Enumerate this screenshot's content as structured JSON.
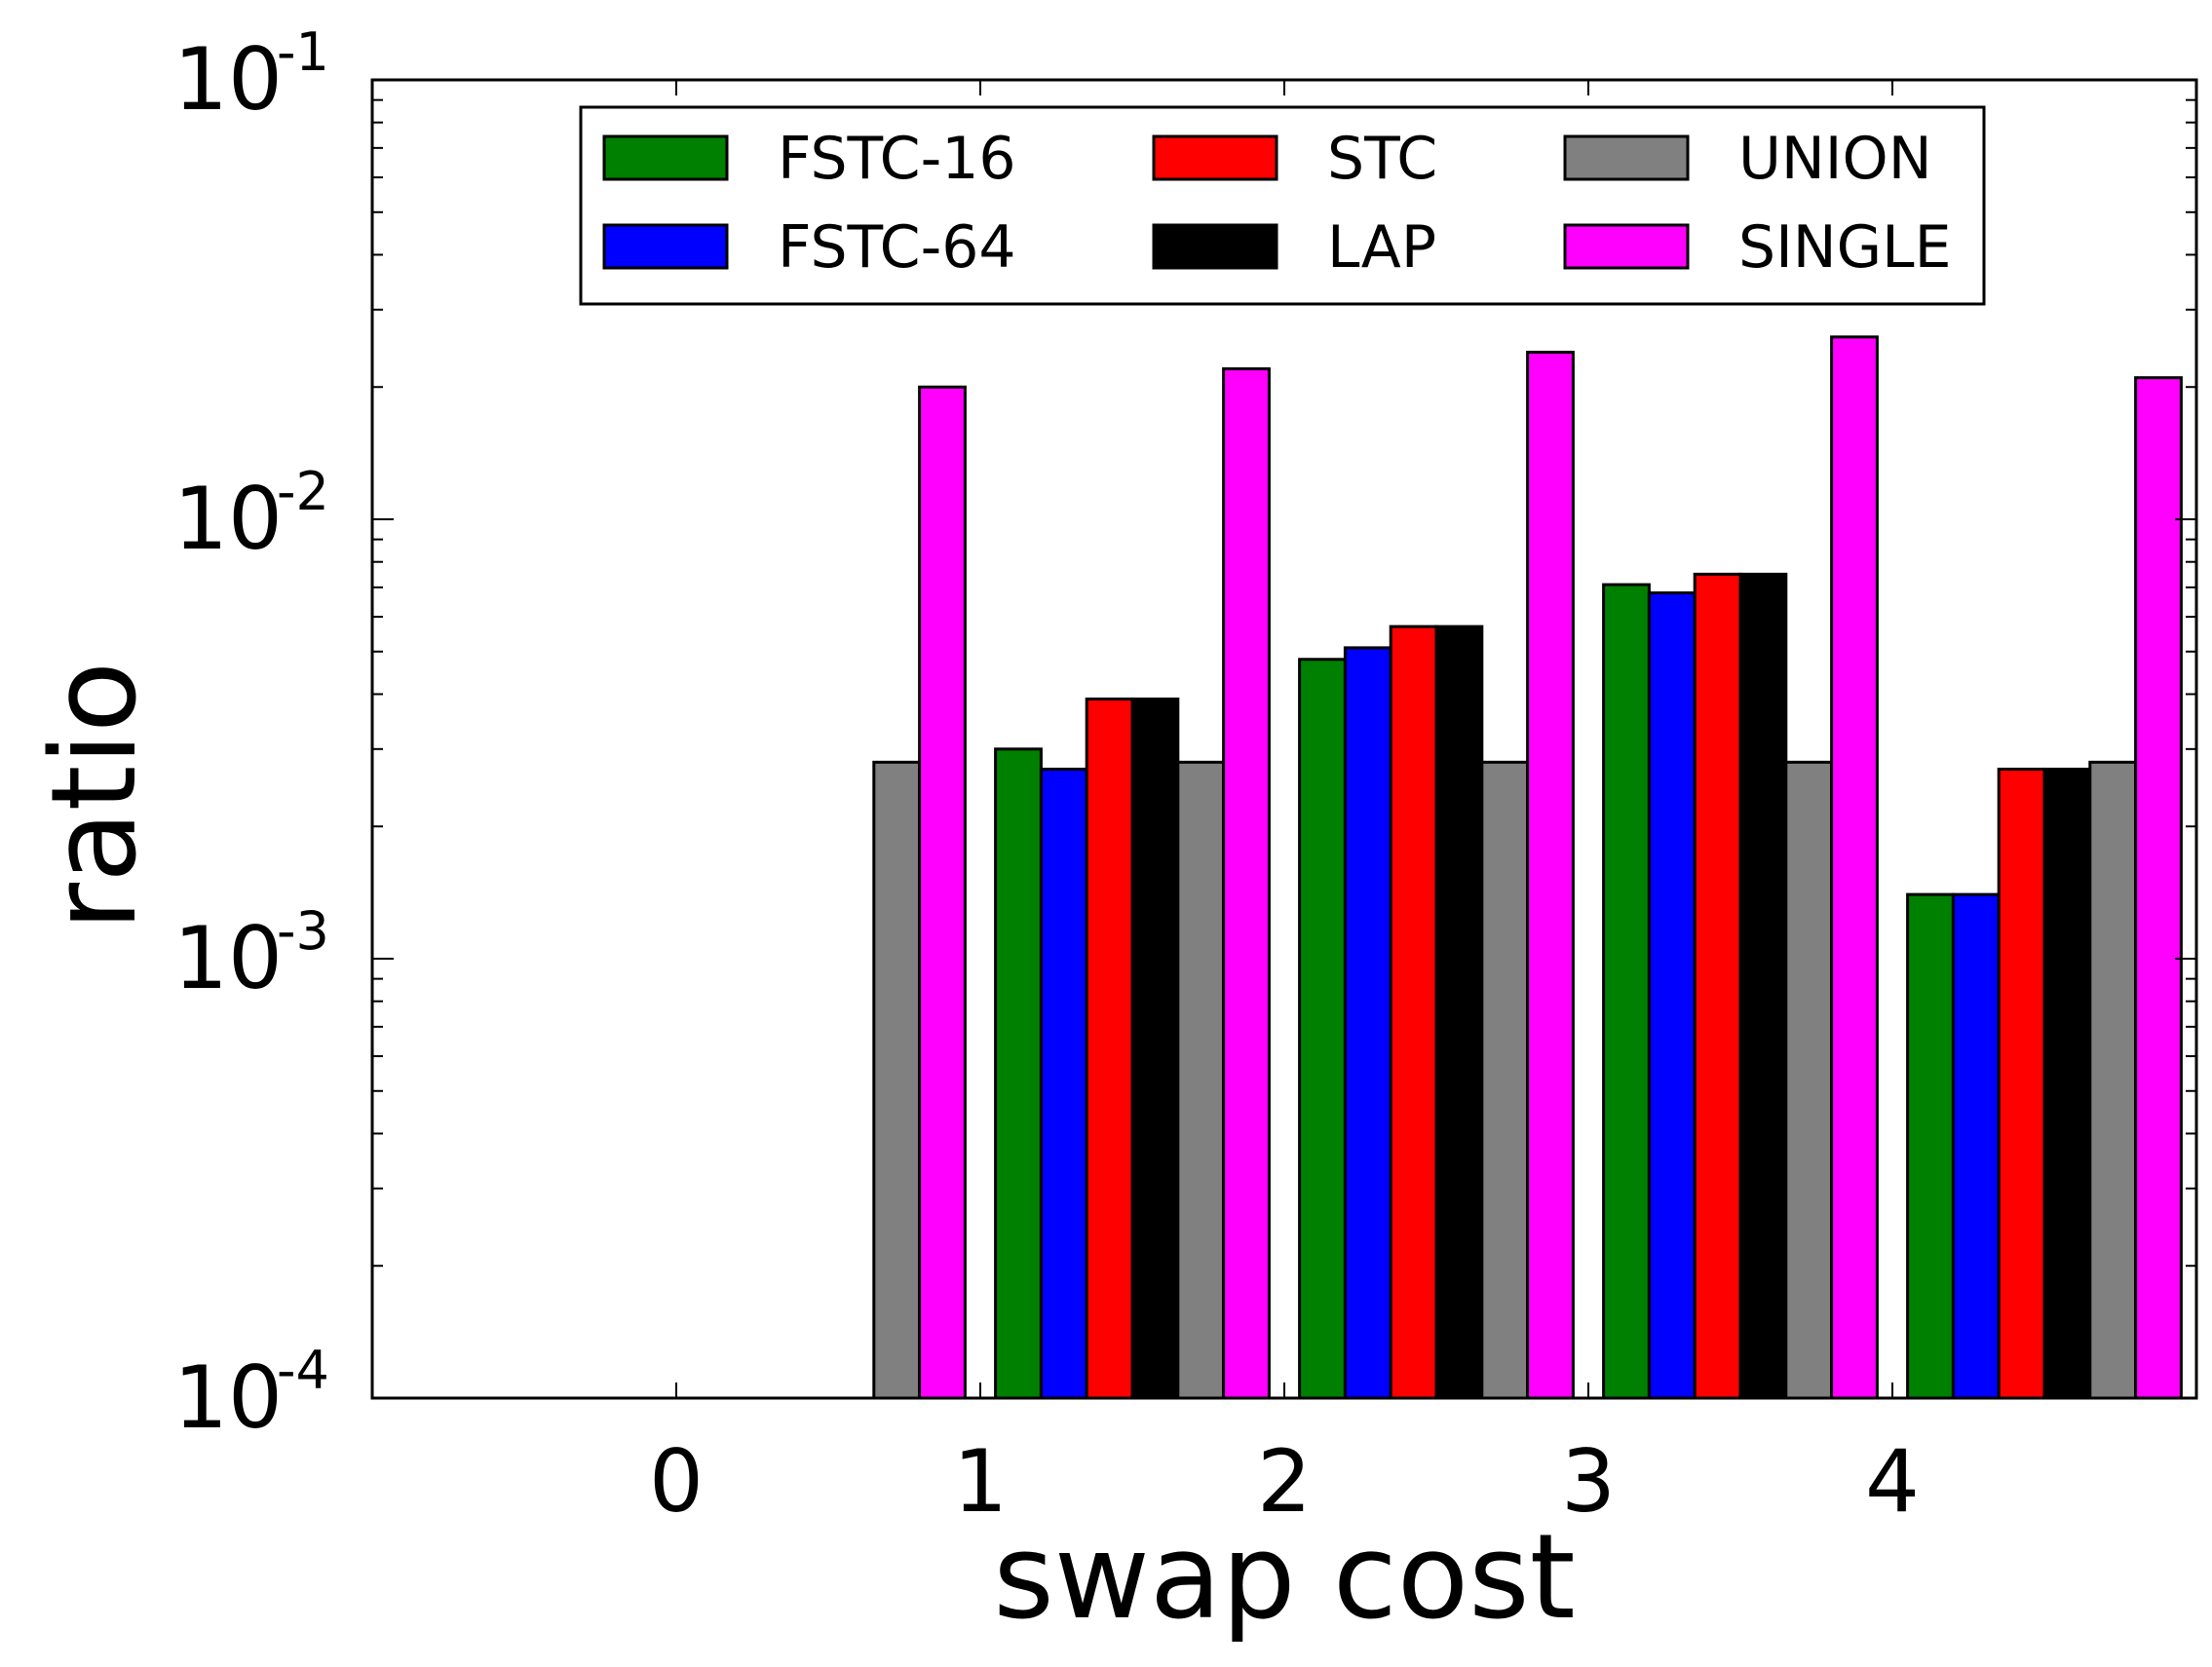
{
  "chart_data": {
    "type": "bar",
    "title": "",
    "xlabel": "swap cost",
    "ylabel": "ratio",
    "yscale": "log",
    "ylim": [
      0.0001,
      0.1
    ],
    "xlim": [
      -1,
      5
    ],
    "categories": [
      "0",
      "1",
      "2",
      "3",
      "4"
    ],
    "y_ticks": [
      {
        "value": 0.0001,
        "base": "10",
        "exp": "-4"
      },
      {
        "value": 0.001,
        "base": "10",
        "exp": "-3"
      },
      {
        "value": 0.01,
        "base": "10",
        "exp": "-2"
      },
      {
        "value": 0.1,
        "base": "10",
        "exp": "-1"
      }
    ],
    "legend_position": "top-center",
    "series": [
      {
        "name": "FSTC-16",
        "color": "#008000",
        "values": [
          null,
          0.003,
          0.0048,
          0.0071,
          0.0014
        ]
      },
      {
        "name": "FSTC-64",
        "color": "#0000ff",
        "values": [
          null,
          0.0027,
          0.0051,
          0.0068,
          0.0014
        ]
      },
      {
        "name": "STC",
        "color": "#ff0000",
        "values": [
          null,
          0.0039,
          0.0057,
          0.0075,
          0.0027
        ]
      },
      {
        "name": "LAP",
        "color": "#000000",
        "values": [
          null,
          0.0039,
          0.0057,
          0.0075,
          0.0027
        ]
      },
      {
        "name": "UNION",
        "color": "#808080",
        "values": [
          0.0028,
          0.0028,
          0.0028,
          0.0028,
          0.0028
        ]
      },
      {
        "name": "SINGLE",
        "color": "#ff00ff",
        "values": [
          0.02,
          0.022,
          0.024,
          0.026,
          0.021
        ]
      }
    ]
  }
}
